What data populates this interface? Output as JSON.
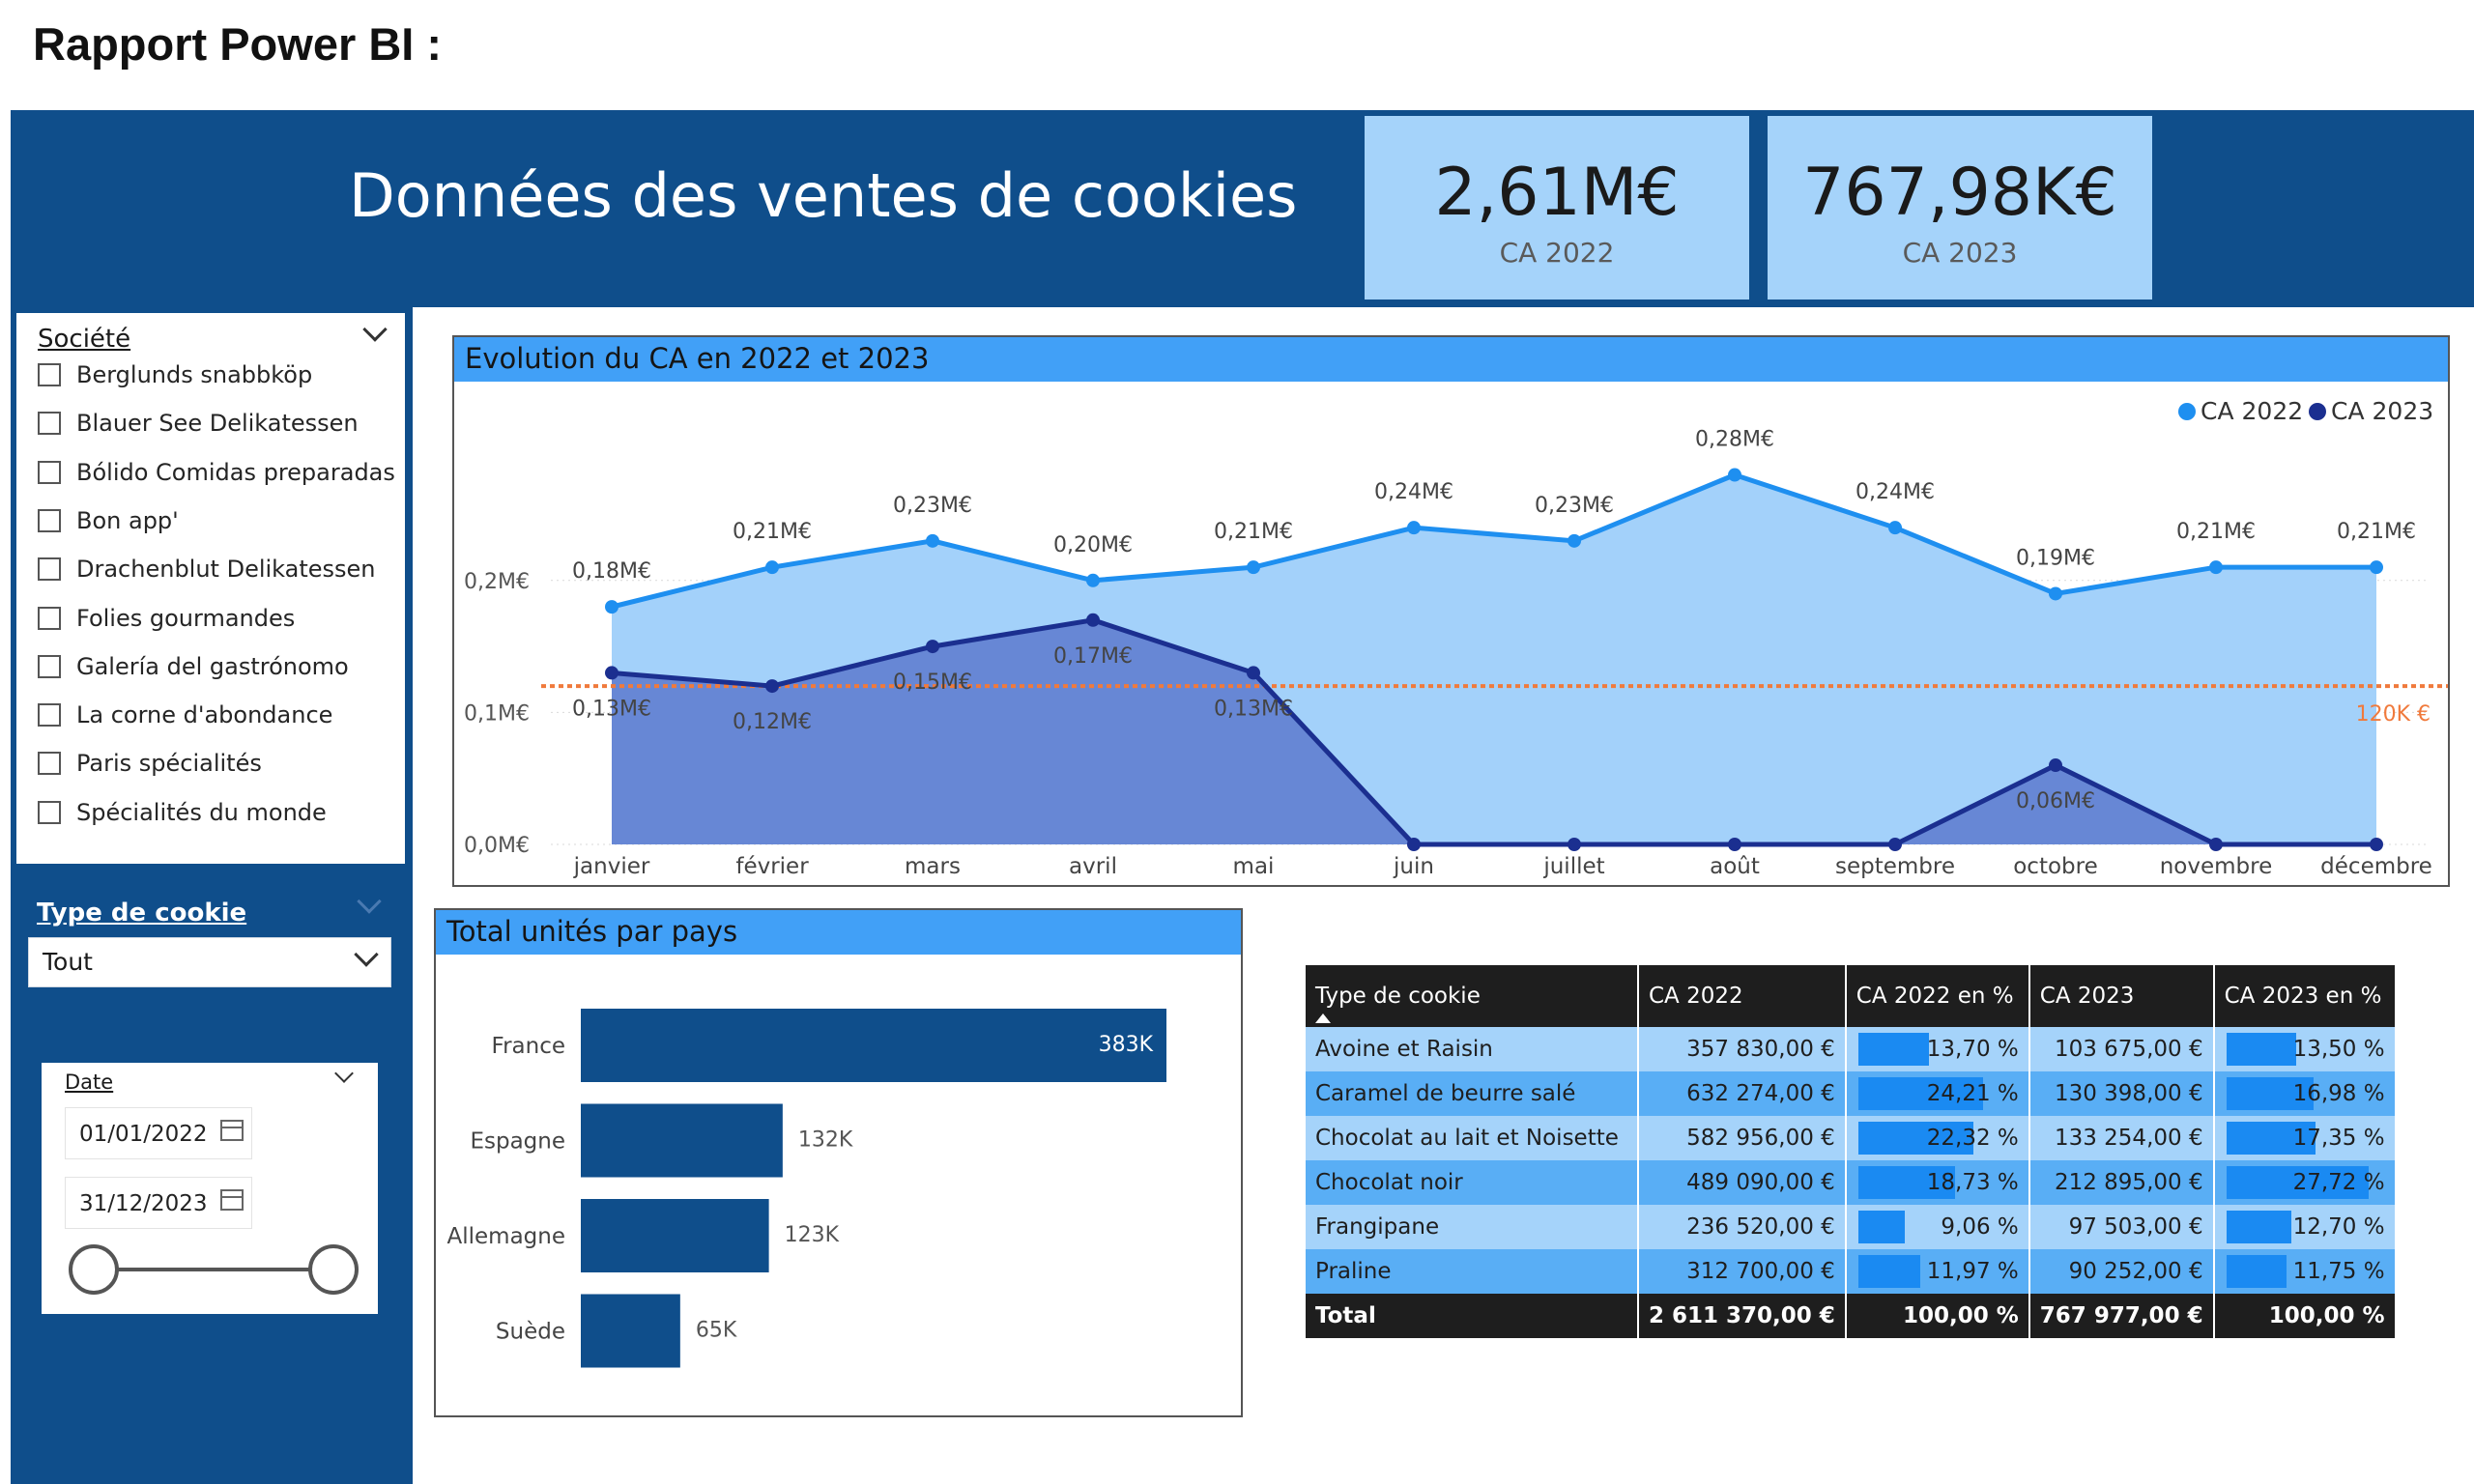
{
  "page_title": "Rapport Power BI :",
  "dashboard_title": "Données des ventes de cookies",
  "kpis": [
    {
      "value": "2,61M€",
      "label": "CA 2022"
    },
    {
      "value": "767,98K€",
      "label": "CA 2023"
    }
  ],
  "filters": {
    "societe": {
      "title": "Société",
      "items": [
        "Berglunds snabbköp",
        "Blauer See Delikatessen",
        "Bólido Comidas preparadas",
        "Bon app'",
        "Drachenblut Delikatessen",
        "Folies gourmandes",
        "Galería del gastrónomo",
        "La corne d'abondance",
        "Paris spécialités",
        "Spécialités du monde"
      ]
    },
    "type_cookie": {
      "title": "Type de cookie",
      "selected": "Tout"
    },
    "date": {
      "title": "Date",
      "start": "01/01/2022",
      "end": "31/12/2023",
      "range_fraction": [
        0,
        1
      ]
    }
  },
  "colors": {
    "ca2022": "#1e8ff0",
    "ca2022_area": "#a3d1fa",
    "ca2023": "#1b2f90",
    "ca2023_area": "#6787d5",
    "reference": "#f07a3c",
    "bars": "#0f4e8b",
    "header": "#0f4e8b"
  },
  "evolution_chart": {
    "title": "Evolution du CA en 2022 et 2023",
    "reference_label": "120K €",
    "chart_data": {
      "type": "area",
      "categories": [
        "janvier",
        "février",
        "mars",
        "avril",
        "mai",
        "juin",
        "juillet",
        "août",
        "septembre",
        "octobre",
        "novembre",
        "décembre"
      ],
      "series": [
        {
          "name": "CA 2022",
          "values": [
            0.18,
            0.21,
            0.23,
            0.2,
            0.21,
            0.24,
            0.23,
            0.28,
            0.24,
            0.19,
            0.21,
            0.21
          ],
          "labels": [
            "0,18M€",
            "0,21M€",
            "0,23M€",
            "0,20M€",
            "0,21M€",
            "0,24M€",
            "0,23M€",
            "0,28M€",
            "0,24M€",
            "0,19M€",
            "0,21M€",
            "0,21M€"
          ]
        },
        {
          "name": "CA 2023",
          "values": [
            0.13,
            0.12,
            0.15,
            0.17,
            0.13,
            0,
            0,
            0,
            0,
            0.06,
            0,
            0
          ],
          "labels": [
            "0,13M€",
            "0,12M€",
            "0,15M€",
            "0,17M€",
            "0,13M€",
            "",
            "",
            "",
            "",
            "0,06M€",
            "",
            ""
          ]
        }
      ],
      "reference_line": 0.12,
      "yticks": [
        {
          "v": 0,
          "label": "0,0M€"
        },
        {
          "v": 0.1,
          "label": "0,1M€"
        },
        {
          "v": 0.2,
          "label": "0,2M€"
        }
      ],
      "ylim": [
        0,
        0.3
      ],
      "legend_position": "top-right"
    }
  },
  "country_chart": {
    "title": "Total unités par pays",
    "chart_data": {
      "type": "bar",
      "categories": [
        "France",
        "Espagne",
        "Allemagne",
        "Suède"
      ],
      "values": [
        383,
        132,
        123,
        65
      ],
      "labels": [
        "383K",
        "132K",
        "123K",
        "65K"
      ],
      "unit": "K"
    }
  },
  "table": {
    "headers": [
      "Type de cookie",
      "CA 2022",
      "CA 2022 en %",
      "CA 2023",
      "CA 2023 en %"
    ],
    "rows": [
      {
        "type": "Avoine et Raisin",
        "ca2022": "357 830,00 €",
        "pct2022": "13,70 %",
        "p22": 13.7,
        "ca2023": "103 675,00 €",
        "pct2023": "13,50 %",
        "p23": 13.5
      },
      {
        "type": "Caramel de beurre salé",
        "ca2022": "632 274,00 €",
        "pct2022": "24,21 %",
        "p22": 24.21,
        "ca2023": "130 398,00 €",
        "pct2023": "16,98 %",
        "p23": 16.98
      },
      {
        "type": "Chocolat au lait et Noisette",
        "ca2022": "582 956,00 €",
        "pct2022": "22,32 %",
        "p22": 22.32,
        "ca2023": "133 254,00 €",
        "pct2023": "17,35 %",
        "p23": 17.35
      },
      {
        "type": "Chocolat noir",
        "ca2022": "489 090,00 €",
        "pct2022": "18,73 %",
        "p22": 18.73,
        "ca2023": "212 895,00 €",
        "pct2023": "27,72 %",
        "p23": 27.72
      },
      {
        "type": "Frangipane",
        "ca2022": "236 520,00 €",
        "pct2022": "9,06 %",
        "p22": 9.06,
        "ca2023": "97 503,00 €",
        "pct2023": "12,70 %",
        "p23": 12.7
      },
      {
        "type": "Praline",
        "ca2022": "312 700,00 €",
        "pct2022": "11,97 %",
        "p22": 11.97,
        "ca2023": "90 252,00 €",
        "pct2023": "11,75 %",
        "p23": 11.75
      }
    ],
    "total": {
      "type": "Total",
      "ca2022": "2 611 370,00 €",
      "pct2022": "100,00 %",
      "ca2023": "767 977,00 €",
      "pct2023": "100,00 %"
    }
  }
}
